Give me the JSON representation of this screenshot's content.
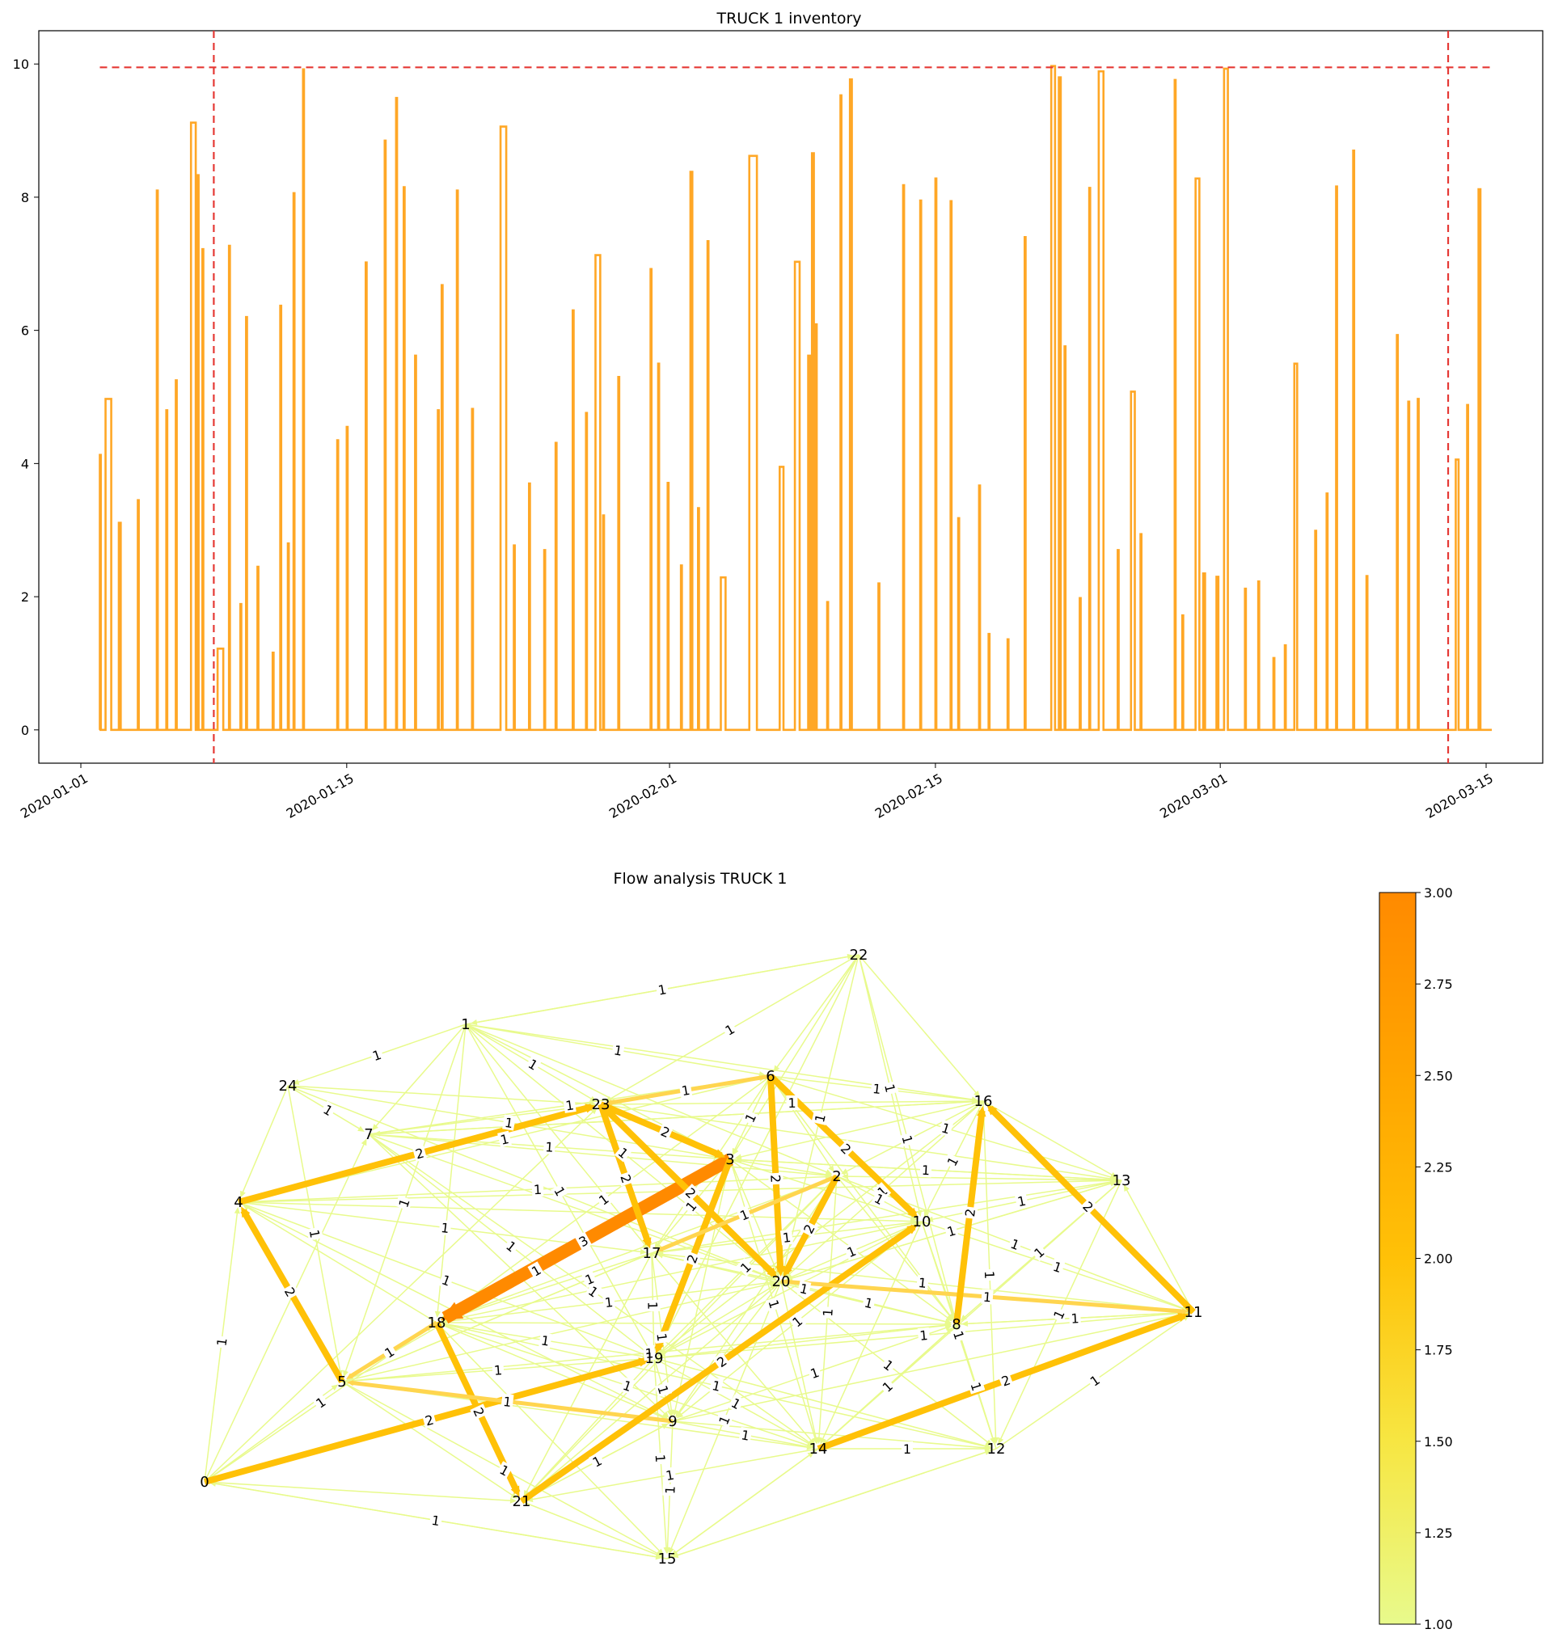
{
  "colors": {
    "series": "#FFA726",
    "threshold": "#E53935",
    "edge_low": "#E8FA8C",
    "edge_mid": "#FFC107",
    "edge_high": "#FF8A00"
  },
  "chart_data": [
    {
      "type": "line",
      "title": "TRUCK 1 inventory",
      "xlabel": "",
      "ylabel": "",
      "ylim": [
        -0.5,
        10.5
      ],
      "y_ticks": [
        "0",
        "2",
        "4",
        "6",
        "8",
        "10"
      ],
      "x_ticks": [
        "2020-01-01",
        "2020-01-15",
        "2020-02-01",
        "2020-02-15",
        "2020-03-01",
        "2020-03-15"
      ],
      "x_range": [
        "2019-12-30",
        "2020-03-16"
      ],
      "threshold_y": 9.95,
      "vertical_lines": [
        "2020-01-08",
        "2020-03-13"
      ],
      "series": [
        {
          "x": [
            "2020-01-02",
            "2020-01-02.3",
            "2020-01-03",
            "2020-01-04",
            "2020-01-05",
            "2020-01-05.5",
            "2020-01-06",
            "2020-01-06.8",
            "2020-01-07.1",
            "2020-01-07.4",
            "2020-01-08.2",
            "2020-01-08.8",
            "2020-01-09.4",
            "2020-01-09.7",
            "2020-01-10.3",
            "2020-01-11.1",
            "2020-01-11.5",
            "2020-01-11.9",
            "2020-01-12.2",
            "2020-01-12.7",
            "2020-01-14.5",
            "2020-01-15",
            "2020-01-16",
            "2020-01-17",
            "2020-01-17.6",
            "2020-01-18",
            "2020-01-18.6",
            "2020-01-19.8",
            "2020-01-20",
            "2020-01-20.8",
            "2020-01-21.6",
            "2020-01-23.1",
            "2020-01-23.8",
            "2020-01-24.6",
            "2020-01-25.4",
            "2020-01-26",
            "2020-01-26.9",
            "2020-01-27.6",
            "2020-01-28.1",
            "2020-01-28.5",
            "2020-01-29.3",
            "2020-01-31",
            "2020-01-31.4",
            "2020-01-31.9",
            "2020-02-01.6",
            "2020-02-02.1",
            "2020-02-02.5",
            "2020-02-03",
            "2020-02-03.7",
            "2020-02-05.2",
            "2020-02-06.8",
            "2020-02-07.6",
            "2020-02-08.3",
            "2020-02-08.5",
            "2020-02-08.7",
            "2020-02-09.3",
            "2020-02-10",
            "2020-02-10.5",
            "2020-02-12",
            "2020-02-13.3",
            "2020-02-14.2",
            "2020-02-15",
            "2020-02-15.8",
            "2020-02-16.2",
            "2020-02-17.3",
            "2020-02-17.8",
            "2020-02-18.8",
            "2020-02-19.7",
            "2020-02-21.1",
            "2020-02-21.5",
            "2020-02-21.8",
            "2020-02-22.6",
            "2020-02-23.1",
            "2020-02-23.6",
            "2020-02-24.6",
            "2020-02-25.3",
            "2020-02-25.8",
            "2020-02-27.6",
            "2020-02-28",
            "2020-02-28.7",
            "2020-02-29.1",
            "2020-02-29.8",
            "2020-03-01.2",
            "2020-03-02.3",
            "2020-03-03",
            "2020-03-03.8",
            "2020-03-04.4",
            "2020-03-04.9",
            "2020-03-06",
            "2020-03-06.6",
            "2020-03-07.1",
            "2020-03-08",
            "2020-03-08.7",
            "2020-03-10.3",
            "2020-03-10.9",
            "2020-03-11.4",
            "2020-03-13.4",
            "2020-03-14",
            "2020-03-14.6"
          ],
          "y": [
            4.13,
            4.97,
            3.11,
            3.45,
            8.1,
            4.8,
            5.25,
            9.12,
            8.33,
            7.22,
            1.22,
            7.27,
            1.89,
            6.2,
            2.45,
            1.16,
            6.37,
            2.8,
            8.06,
            9.92,
            4.35,
            4.55,
            7.02,
            8.85,
            9.49,
            8.15,
            5.62,
            4.8,
            6.68,
            8.1,
            4.82,
            9.06,
            2.77,
            3.7,
            2.7,
            4.31,
            6.3,
            4.76,
            7.13,
            3.22,
            5.3,
            6.92,
            5.5,
            3.71,
            2.47,
            8.38,
            3.33,
            7.34,
            2.29,
            8.62,
            3.95,
            7.03,
            5.62,
            8.66,
            6.09,
            1.92,
            9.53,
            9.77,
            2.2,
            8.18,
            7.95,
            8.28,
            7.94,
            3.18,
            3.67,
            1.44,
            1.36,
            7.4,
            9.97,
            9.8,
            5.76,
            1.98,
            8.14,
            9.89,
            2.7,
            5.08,
            2.94,
            9.76,
            1.72,
            8.28,
            2.35,
            2.3,
            9.93,
            2.12,
            2.23,
            1.08,
            1.27,
            5.5,
            2.99,
            3.55,
            8.16,
            8.7,
            2.31,
            5.93,
            4.93,
            4.97,
            4.06,
            4.88,
            8.12
          ],
          "widths": [
            0.05,
            0.3,
            0.1,
            0.05,
            0.05,
            0.05,
            0.05,
            0.25,
            0.1,
            0.05,
            0.3,
            0.05,
            0.05,
            0.05,
            0.05,
            0.05,
            0.05,
            0.05,
            0.05,
            0.05,
            0.05,
            0.05,
            0.05,
            0.05,
            0.05,
            0.05,
            0.05,
            0.05,
            0.05,
            0.05,
            0.05,
            0.3,
            0.05,
            0.05,
            0.05,
            0.05,
            0.05,
            0.05,
            0.25,
            0.05,
            0.05,
            0.05,
            0.05,
            0.05,
            0.05,
            0.1,
            0.05,
            0.05,
            0.25,
            0.4,
            0.2,
            0.25,
            0.1,
            0.1,
            0.05,
            0.05,
            0.05,
            0.1,
            0.05,
            0.05,
            0.05,
            0.05,
            0.05,
            0.05,
            0.05,
            0.05,
            0.05,
            0.05,
            0.2,
            0.1,
            0.05,
            0.05,
            0.05,
            0.25,
            0.05,
            0.2,
            0.05,
            0.05,
            0.05,
            0.2,
            0.1,
            0.1,
            0.2,
            0.05,
            0.05,
            0.05,
            0.05,
            0.15,
            0.05,
            0.05,
            0.05,
            0.05,
            0.05,
            0.05,
            0.05,
            0.05,
            0.15,
            0.05,
            0.1
          ]
        }
      ]
    },
    {
      "type": "network",
      "title": "Flow analysis TRUCK 1",
      "colorbar": {
        "min": 1.0,
        "max": 3.0,
        "ticks": [
          "1.00",
          "1.25",
          "1.50",
          "1.75",
          "2.00",
          "2.25",
          "2.50",
          "2.75",
          "3.00"
        ]
      },
      "nodes": [
        "0",
        "1",
        "2",
        "3",
        "4",
        "5",
        "6",
        "7",
        "8",
        "9",
        "10",
        "11",
        "12",
        "13",
        "14",
        "15",
        "16",
        "17",
        "18",
        "19",
        "20",
        "21",
        "22",
        "23",
        "24"
      ],
      "weighted_edges": [
        {
          "from": "4",
          "to": "23",
          "weight": 2
        },
        {
          "from": "5",
          "to": "4",
          "weight": 2
        },
        {
          "from": "3",
          "to": "18",
          "weight": 3
        },
        {
          "from": "6",
          "to": "23",
          "weight": 1
        },
        {
          "from": "6",
          "to": "10",
          "weight": 2
        },
        {
          "from": "6",
          "to": "20",
          "weight": 2
        },
        {
          "from": "23",
          "to": "3",
          "weight": 2
        },
        {
          "from": "23",
          "to": "17",
          "weight": 2
        },
        {
          "from": "23",
          "to": "20",
          "weight": 2
        },
        {
          "from": "3",
          "to": "19",
          "weight": 2
        },
        {
          "from": "2",
          "to": "17",
          "weight": 1
        },
        {
          "from": "0",
          "to": "19",
          "weight": 2
        },
        {
          "from": "18",
          "to": "21",
          "weight": 2
        },
        {
          "from": "18",
          "to": "5",
          "weight": 1
        },
        {
          "from": "9",
          "to": "5",
          "weight": 1
        },
        {
          "from": "21",
          "to": "10",
          "weight": 2
        },
        {
          "from": "14",
          "to": "11",
          "weight": 2
        },
        {
          "from": "20",
          "to": "11",
          "weight": 1
        },
        {
          "from": "11",
          "to": "16",
          "weight": 2
        },
        {
          "from": "8",
          "to": "16",
          "weight": 2
        },
        {
          "from": "2",
          "to": "20",
          "weight": 2
        }
      ],
      "light_edge_label": "1"
    }
  ]
}
